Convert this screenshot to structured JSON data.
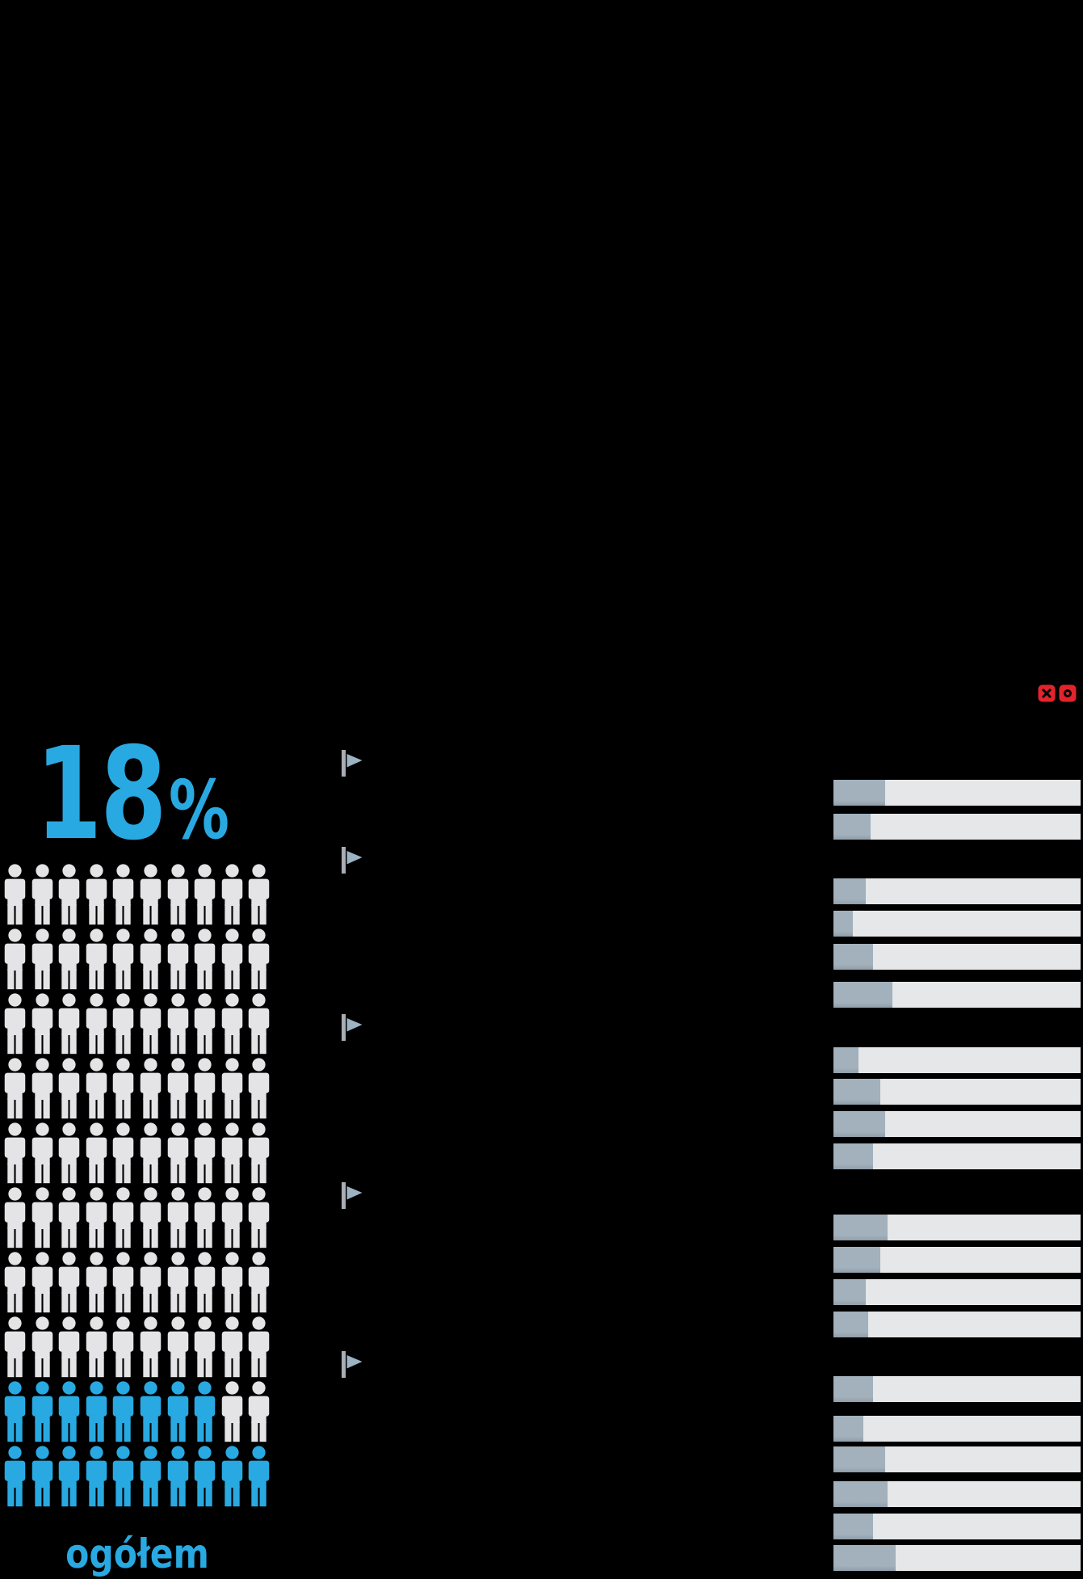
{
  "headline": {
    "value": "18",
    "percent_sign": "%"
  },
  "pictogram": {
    "label": "ogółem",
    "total_icons": 100,
    "highlighted_icons": 18,
    "grid": {
      "rows": 10,
      "cols": 10
    },
    "highlight_layout": "8 highlighted icons in 9th row, all 10 in 10th (bottom) row"
  },
  "bullets": {
    "icon": "flag-icon",
    "count": 5
  },
  "logo": {
    "icon": "logo-mark-icon",
    "color": "#E3232B"
  },
  "colors": {
    "background": "#000000",
    "accent_blue": "#29A9E1",
    "icon_gray": "#E4E4E6",
    "bar_track": "#E5E7E9",
    "bar_fill": "#A2B1BC",
    "bar_fill_edge": "#8F9EA9",
    "flag_pole": "#A9AEB4",
    "flag_banner": "#9BB3C3",
    "logo_red": "#E3232B"
  },
  "chart_data": [
    {
      "type": "pictograph",
      "title": "18% ogółem",
      "value_percent": 18,
      "total_icons": 100,
      "highlighted_icons": 18,
      "grid": {
        "rows": 10,
        "cols": 10
      },
      "legend_label": "ogółem"
    },
    {
      "type": "bar",
      "orientation": "horizontal",
      "xlim": [
        0,
        100
      ],
      "unit": "%",
      "grid": false,
      "groups": [
        {
          "values_percent": [
            21,
            15
          ]
        },
        {
          "values_percent": [
            13,
            8,
            16,
            24
          ]
        },
        {
          "values_percent": [
            10,
            19,
            21,
            16
          ]
        },
        {
          "values_percent": [
            22,
            19,
            13,
            14
          ]
        },
        {
          "values_percent": [
            16,
            12,
            21,
            22,
            16,
            25
          ]
        }
      ]
    }
  ]
}
